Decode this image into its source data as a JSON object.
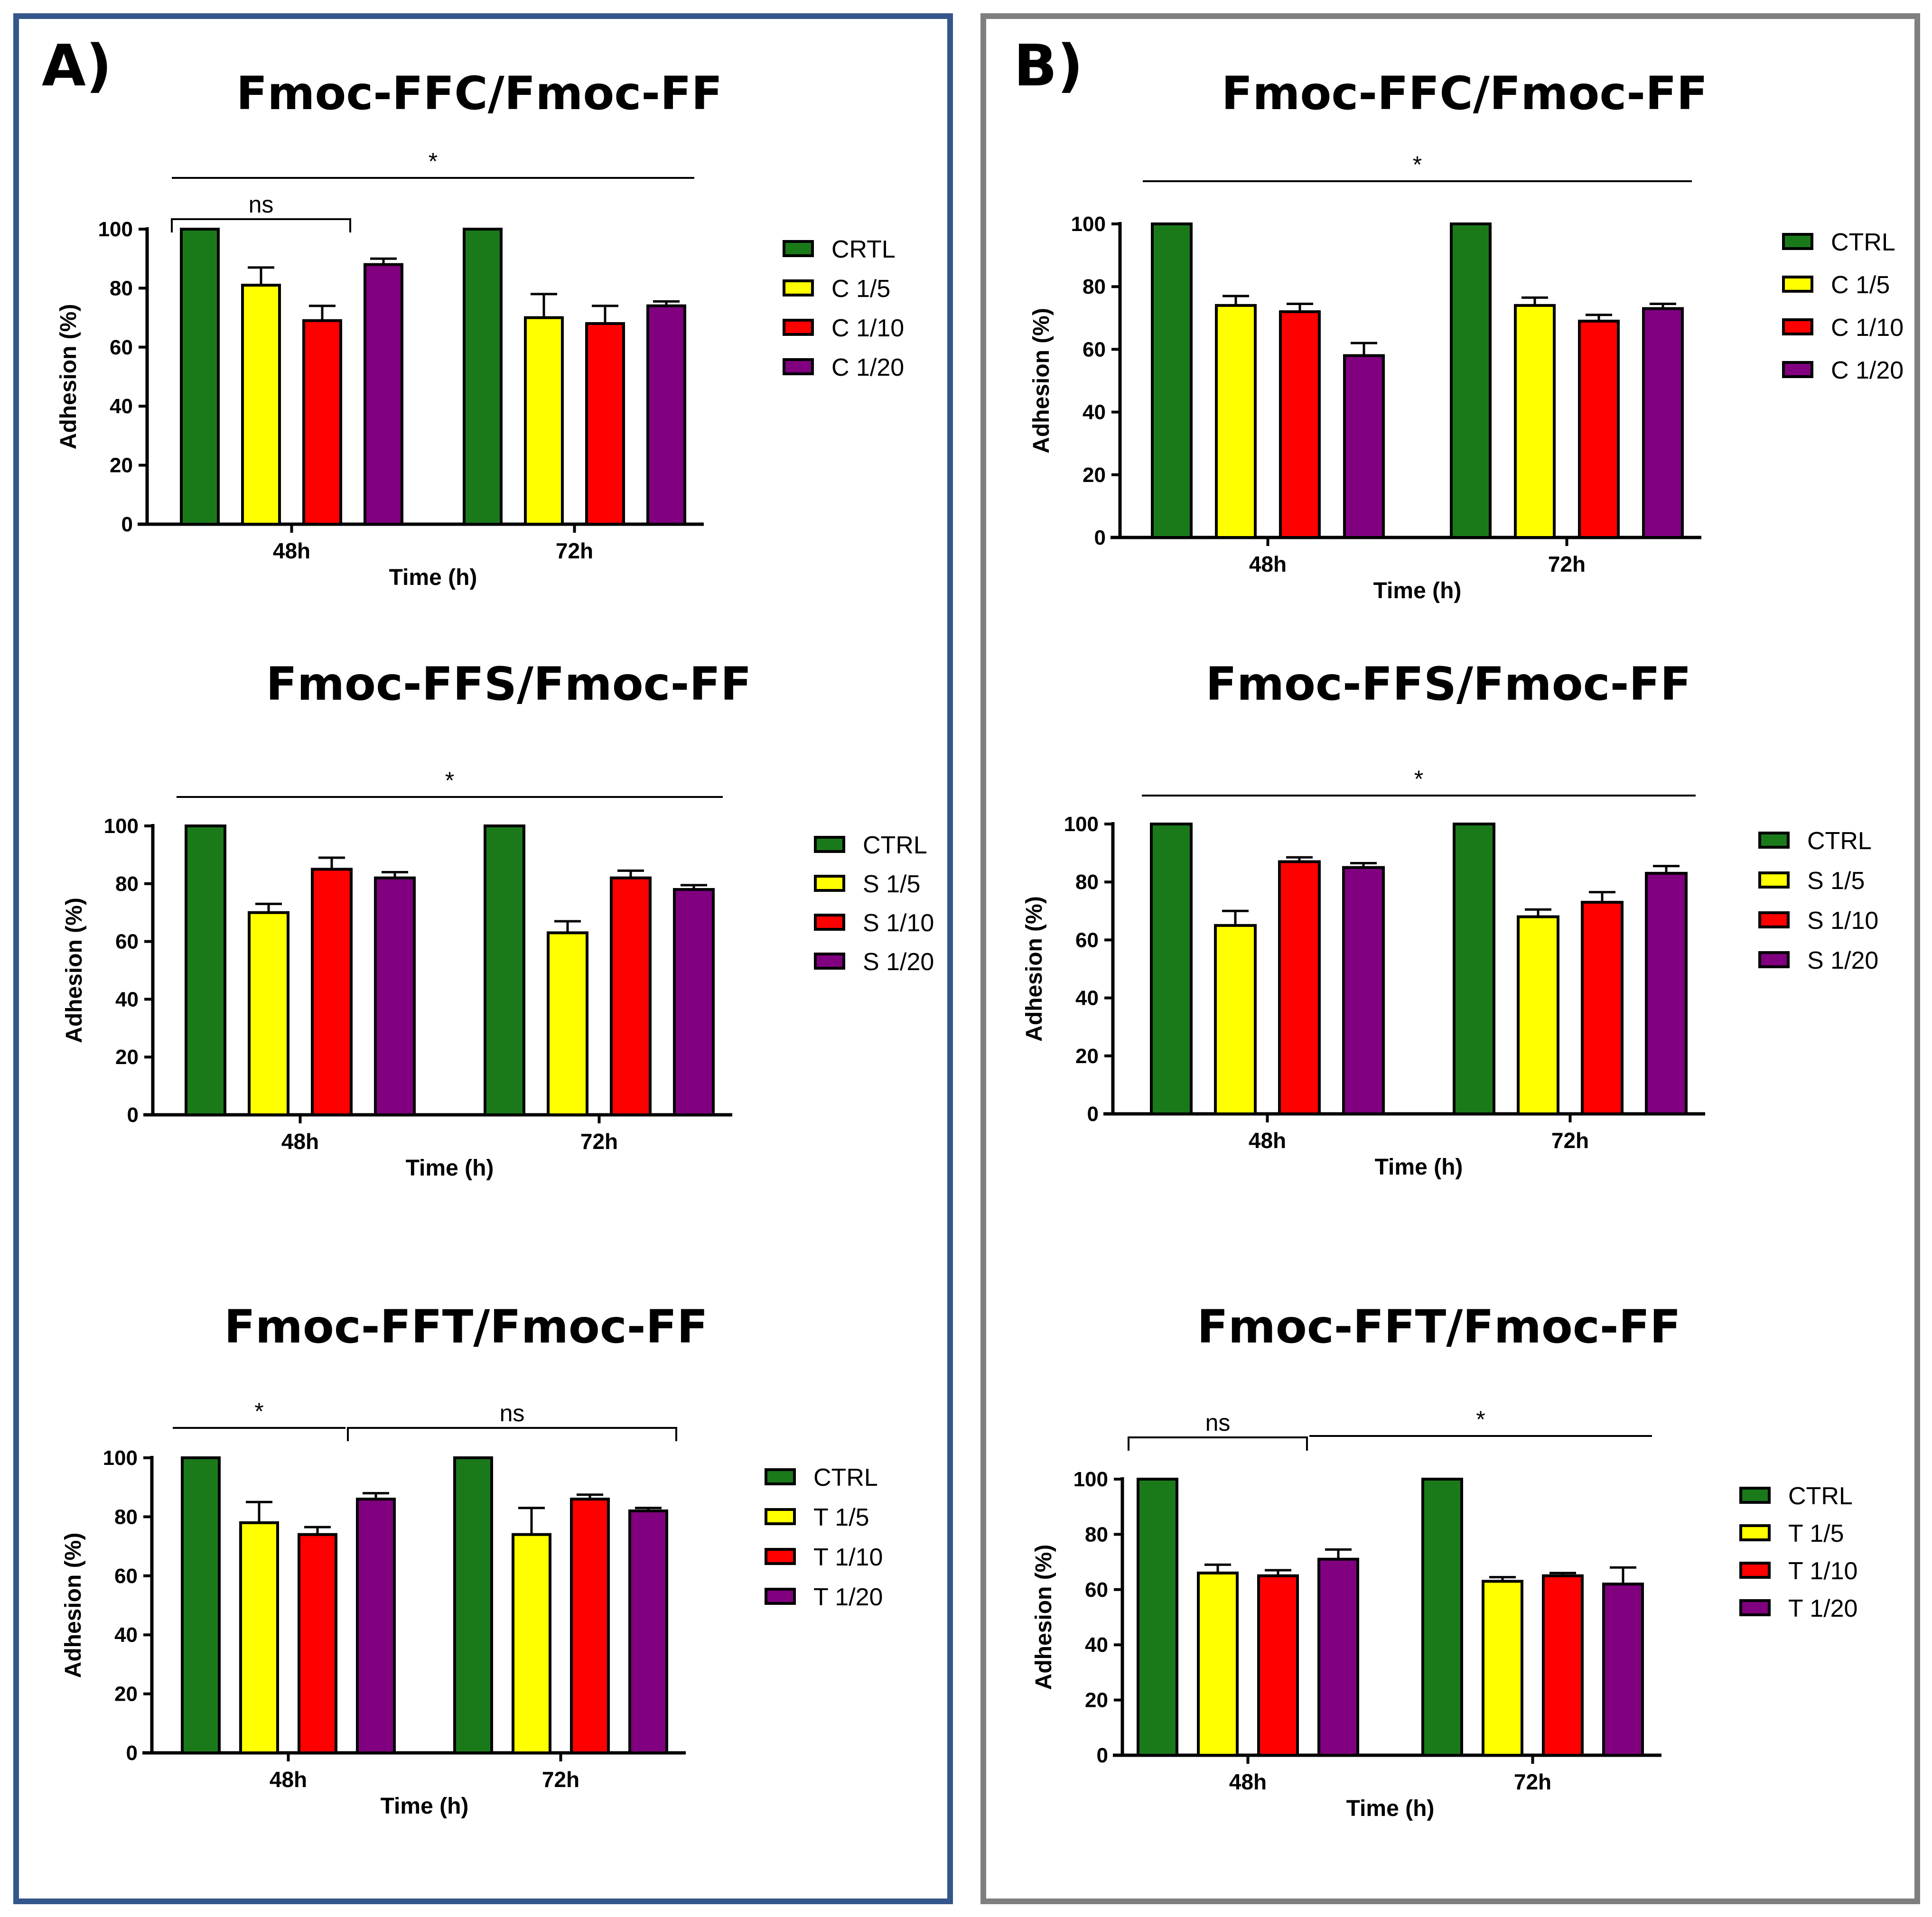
{
  "panels": [
    {
      "id": "A",
      "label": "A)",
      "border_color": "#34568b"
    },
    {
      "id": "B",
      "label": "B)",
      "border_color": "#7f7f7f"
    }
  ],
  "colors": {
    "CTRL": "#1a7a1a",
    "c5": "#ffff00",
    "c10": "#ff0000",
    "c20": "#800080"
  },
  "chart_data": [
    {
      "panel": "A",
      "type": "bar",
      "title": "Fmoc-FFC/Fmoc-FF",
      "xlabel": "Time (h)",
      "ylabel": "Adhesion (%)",
      "ylim": [
        0,
        100
      ],
      "yticks": [
        0,
        20,
        40,
        60,
        80,
        100
      ],
      "categories": [
        "48h",
        "72h"
      ],
      "series": [
        {
          "name": "CRTL",
          "color_key": "CTRL",
          "values": [
            100,
            100
          ],
          "errors": [
            0,
            0
          ]
        },
        {
          "name": "C 1/5",
          "color_key": "c5",
          "values": [
            81,
            70
          ],
          "errors": [
            6,
            8
          ]
        },
        {
          "name": "C 1/10",
          "color_key": "c10",
          "values": [
            69,
            68
          ],
          "errors": [
            5,
            6
          ]
        },
        {
          "name": "C 1/20",
          "color_key": "c20",
          "values": [
            88,
            74
          ],
          "errors": [
            2,
            1.5
          ]
        }
      ],
      "annotations": [
        {
          "text": "*",
          "kind": "line",
          "from": [
            0,
            0
          ],
          "to": [
            1,
            3
          ]
        },
        {
          "text": "ns",
          "kind": "bracket",
          "from": [
            0,
            0
          ],
          "to": [
            0,
            2
          ]
        }
      ]
    },
    {
      "panel": "A",
      "type": "bar",
      "title": "Fmoc-FFS/Fmoc-FF",
      "xlabel": "Time (h)",
      "ylabel": "Adhesion (%)",
      "ylim": [
        0,
        100
      ],
      "yticks": [
        0,
        20,
        40,
        60,
        80,
        100
      ],
      "categories": [
        "48h",
        "72h"
      ],
      "series": [
        {
          "name": "CTRL",
          "color_key": "CTRL",
          "values": [
            100,
            100
          ],
          "errors": [
            0,
            0
          ]
        },
        {
          "name": "S 1/5",
          "color_key": "c5",
          "values": [
            70,
            63
          ],
          "errors": [
            3,
            4
          ]
        },
        {
          "name": "S 1/10",
          "color_key": "c10",
          "values": [
            85,
            82
          ],
          "errors": [
            4,
            2.5
          ]
        },
        {
          "name": "S 1/20",
          "color_key": "c20",
          "values": [
            82,
            78
          ],
          "errors": [
            2,
            1.5
          ]
        }
      ],
      "annotations": [
        {
          "text": "*",
          "kind": "line",
          "from": [
            0,
            0
          ],
          "to": [
            1,
            3
          ]
        }
      ]
    },
    {
      "panel": "A",
      "type": "bar",
      "title": "Fmoc-FFT/Fmoc-FF",
      "xlabel": "Time (h)",
      "ylabel": "Adhesion (%)",
      "ylim": [
        0,
        100
      ],
      "yticks": [
        0,
        20,
        40,
        60,
        80,
        100
      ],
      "categories": [
        "48h",
        "72h"
      ],
      "series": [
        {
          "name": "CTRL",
          "color_key": "CTRL",
          "values": [
            100,
            100
          ],
          "errors": [
            0,
            0
          ]
        },
        {
          "name": "T 1/5",
          "color_key": "c5",
          "values": [
            78,
            74
          ],
          "errors": [
            7,
            9
          ]
        },
        {
          "name": "T 1/10",
          "color_key": "c10",
          "values": [
            74,
            86
          ],
          "errors": [
            2.5,
            1.5
          ]
        },
        {
          "name": "T 1/20",
          "color_key": "c20",
          "values": [
            86,
            82
          ],
          "errors": [
            2,
            1
          ]
        }
      ],
      "annotations": [
        {
          "text": "*",
          "kind": "line",
          "from": [
            0,
            0
          ],
          "to": [
            0,
            2
          ]
        },
        {
          "text": "ns",
          "kind": "bracket",
          "from": [
            0,
            3
          ],
          "to": [
            1,
            3
          ]
        }
      ]
    },
    {
      "panel": "B",
      "type": "bar",
      "title": "Fmoc-FFC/Fmoc-FF",
      "xlabel": "Time (h)",
      "ylabel": "Adhesion (%)",
      "ylim": [
        0,
        100
      ],
      "yticks": [
        0,
        20,
        40,
        60,
        80,
        100
      ],
      "categories": [
        "48h",
        "72h"
      ],
      "series": [
        {
          "name": "CTRL",
          "color_key": "CTRL",
          "values": [
            100,
            100
          ],
          "errors": [
            0,
            0
          ]
        },
        {
          "name": "C 1/5",
          "color_key": "c5",
          "values": [
            74,
            74
          ],
          "errors": [
            3,
            2.5
          ]
        },
        {
          "name": "C 1/10",
          "color_key": "c10",
          "values": [
            72,
            69
          ],
          "errors": [
            2.5,
            2
          ]
        },
        {
          "name": "C 1/20",
          "color_key": "c20",
          "values": [
            58,
            73
          ],
          "errors": [
            4,
            1.5
          ]
        }
      ],
      "annotations": [
        {
          "text": "*",
          "kind": "line",
          "from": [
            0,
            0
          ],
          "to": [
            1,
            3
          ]
        }
      ]
    },
    {
      "panel": "B",
      "type": "bar",
      "title": "Fmoc-FFS/Fmoc-FF",
      "xlabel": "Time (h)",
      "ylabel": "Adhesion (%)",
      "ylim": [
        0,
        100
      ],
      "yticks": [
        0,
        20,
        40,
        60,
        80,
        100
      ],
      "categories": [
        "48h",
        "72h"
      ],
      "series": [
        {
          "name": "CTRL",
          "color_key": "CTRL",
          "values": [
            100,
            100
          ],
          "errors": [
            0,
            0
          ]
        },
        {
          "name": "S 1/5",
          "color_key": "c5",
          "values": [
            65,
            68
          ],
          "errors": [
            5,
            2.5
          ]
        },
        {
          "name": "S 1/10",
          "color_key": "c10",
          "values": [
            87,
            73
          ],
          "errors": [
            1.5,
            3.5
          ]
        },
        {
          "name": "S 1/20",
          "color_key": "c20",
          "values": [
            85,
            83
          ],
          "errors": [
            1.5,
            2.5
          ]
        }
      ],
      "annotations": [
        {
          "text": "*",
          "kind": "line",
          "from": [
            0,
            0
          ],
          "to": [
            1,
            3
          ]
        }
      ]
    },
    {
      "panel": "B",
      "type": "bar",
      "title": "Fmoc-FFT/Fmoc-FF",
      "xlabel": "Time (h)",
      "ylabel": "Adhesion (%)",
      "ylim": [
        0,
        100
      ],
      "yticks": [
        0,
        20,
        40,
        60,
        80,
        100
      ],
      "categories": [
        "48h",
        "72h"
      ],
      "series": [
        {
          "name": "CTRL",
          "color_key": "CTRL",
          "values": [
            100,
            100
          ],
          "errors": [
            0,
            0
          ]
        },
        {
          "name": "T 1/5",
          "color_key": "c5",
          "values": [
            66,
            63
          ],
          "errors": [
            3,
            1.5
          ]
        },
        {
          "name": "T 1/10",
          "color_key": "c10",
          "values": [
            65,
            65
          ],
          "errors": [
            2,
            1
          ]
        },
        {
          "name": "T 1/20",
          "color_key": "c20",
          "values": [
            71,
            62
          ],
          "errors": [
            3.5,
            6
          ]
        }
      ],
      "annotations": [
        {
          "text": "ns",
          "kind": "bracket",
          "from": [
            0,
            0
          ],
          "to": [
            0,
            2
          ]
        },
        {
          "text": "*",
          "kind": "line",
          "from": [
            0,
            3
          ],
          "to": [
            1,
            3
          ]
        }
      ]
    }
  ]
}
